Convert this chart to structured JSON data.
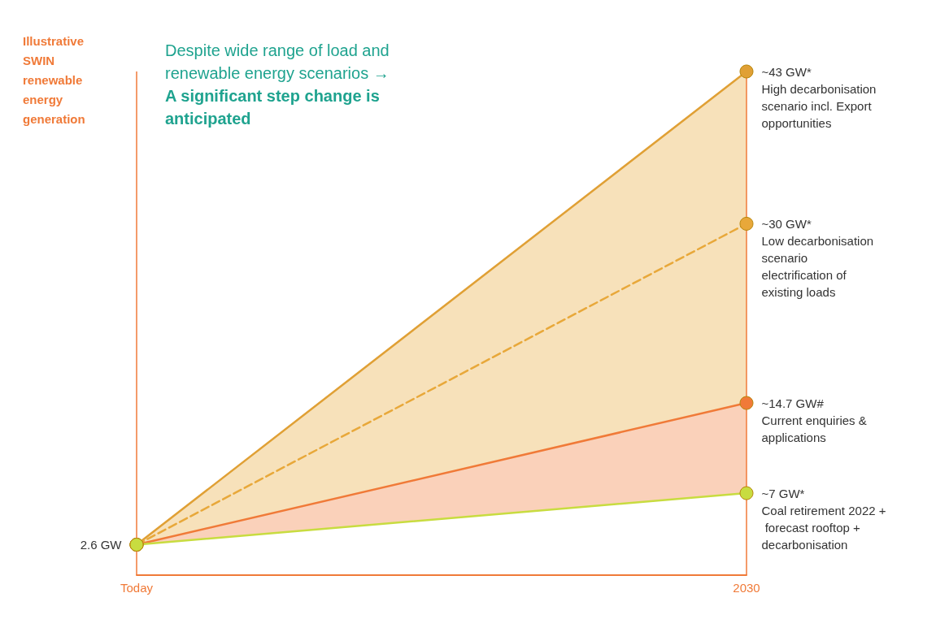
{
  "chart_data": {
    "type": "line",
    "ylabel": "Illustrative SWIN renewable energy generation",
    "categories": [
      "Today",
      "2030"
    ],
    "series": [
      {
        "name": "High decarbonisation scenario incl. Export opportunities",
        "color": "#e0a035",
        "values": [
          2.6,
          43
        ],
        "line_style": "solid",
        "value_labels": [
          null,
          "~43 GW*"
        ]
      },
      {
        "name": "Low decarbonisation scenario electrification of existing loads",
        "color": "#e8a83a",
        "values": [
          2.6,
          30
        ],
        "line_style": "dashed",
        "value_labels": [
          null,
          "~30 GW*"
        ],
        "lower": [
          2.6,
          14.7
        ],
        "upper": [
          2.6,
          43
        ]
      },
      {
        "name": "Current enquiries & applications",
        "color": "#f07a38",
        "values": [
          2.6,
          14.7
        ],
        "line_style": "solid",
        "value_labels": [
          null,
          "~14.7 GW#"
        ],
        "lower": [
          2.6,
          7
        ],
        "upper": [
          2.6,
          14.7
        ]
      },
      {
        "name": "Coal retirement 2022 + forecast rooftop + decarbonisation",
        "color": "#c8dc40",
        "values": [
          2.6,
          7
        ],
        "line_style": "solid",
        "value_labels": [
          "2.6 GW",
          "~7 GW*"
        ]
      }
    ],
    "annotations": [
      "Despite wide range of load and renewable energy scenarios →",
      "A significant step change is anticipated"
    ],
    "ref_lines": [
      {
        "axis": "x",
        "value": "Today",
        "color": "#f07a38"
      },
      {
        "axis": "x",
        "value": "2030",
        "color": "#f07a38"
      }
    ],
    "tick_labels": "x",
    "legend": false,
    "marker": "circle"
  }
}
